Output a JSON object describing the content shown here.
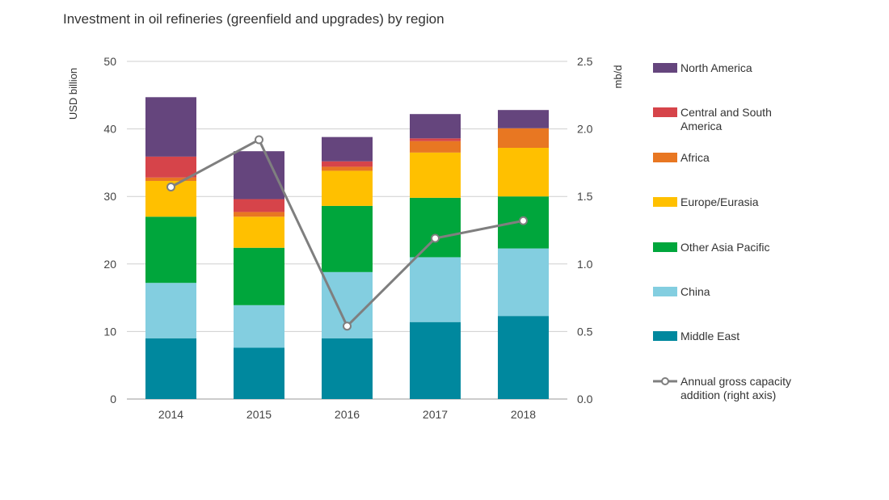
{
  "chart_data": {
    "type": "bar",
    "title": "Investment in oil refineries (greenfield and upgrades) by region",
    "ylabel": "USD billion",
    "y2label": "mb/d",
    "categories": [
      "2014",
      "2015",
      "2016",
      "2017",
      "2018"
    ],
    "ylim": [
      0,
      50
    ],
    "y2lim": [
      0,
      2.5
    ],
    "yticks": [
      "0",
      "10",
      "20",
      "30",
      "40",
      "50"
    ],
    "y2ticks": [
      "0.0",
      "0.5",
      "1.0",
      "1.5",
      "2.0",
      "2.5"
    ],
    "stacked": true,
    "grid": true,
    "legend_position": "right",
    "series": [
      {
        "name": "Middle East",
        "color": "#00889e",
        "values": [
          9.0,
          7.6,
          9.0,
          11.4,
          12.3
        ]
      },
      {
        "name": "China",
        "color": "#83cee0",
        "values": [
          8.2,
          6.3,
          9.8,
          9.6,
          10.0
        ]
      },
      {
        "name": "Other Asia Pacific",
        "color": "#00a63c",
        "values": [
          9.8,
          8.5,
          9.8,
          8.8,
          7.7
        ]
      },
      {
        "name": "Europe/Eurasia",
        "color": "#ffc000",
        "values": [
          5.3,
          4.6,
          5.2,
          6.7,
          7.2
        ]
      },
      {
        "name": "Africa",
        "color": "#e87722",
        "values": [
          0.5,
          0.7,
          0.6,
          1.7,
          2.9
        ]
      },
      {
        "name": "Central and South America",
        "color": "#d6444a",
        "values": [
          3.1,
          1.9,
          0.8,
          0.4,
          0.0
        ]
      },
      {
        "name": "North America",
        "color": "#65457d",
        "values": [
          8.8,
          7.1,
          3.6,
          3.6,
          2.7
        ]
      }
    ],
    "line_series": {
      "name": "Annual gross capacity addition (right axis)",
      "axis": "right",
      "color": "#7f7f7f",
      "values": [
        1.57,
        1.92,
        0.54,
        1.19,
        1.32
      ]
    },
    "legend": [
      {
        "label_lines": [
          "North America"
        ],
        "color": "#65457d",
        "kind": "box"
      },
      {
        "label_lines": [
          "Central and South",
          "America"
        ],
        "color": "#d6444a",
        "kind": "box"
      },
      {
        "label_lines": [
          "Africa"
        ],
        "color": "#e87722",
        "kind": "box"
      },
      {
        "label_lines": [
          "Europe/Eurasia"
        ],
        "color": "#ffc000",
        "kind": "box"
      },
      {
        "label_lines": [
          "Other Asia Pacific"
        ],
        "color": "#00a63c",
        "kind": "box"
      },
      {
        "label_lines": [
          "China"
        ],
        "color": "#83cee0",
        "kind": "box"
      },
      {
        "label_lines": [
          "Middle East"
        ],
        "color": "#00889e",
        "kind": "box"
      },
      {
        "label_lines": [
          "Annual gross capacity",
          "addition (right axis)"
        ],
        "color": "#7f7f7f",
        "kind": "line"
      }
    ]
  }
}
